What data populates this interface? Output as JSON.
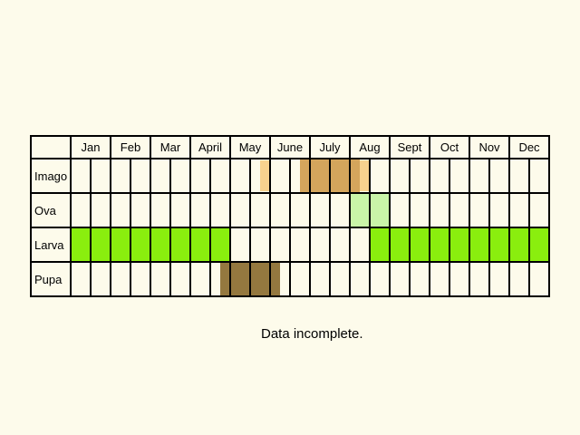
{
  "months": [
    "Jan",
    "Feb",
    "Mar",
    "April",
    "May",
    "June",
    "July",
    "Aug",
    "Sept",
    "Oct",
    "Nov",
    "Dec"
  ],
  "stages": [
    {
      "label": "Imago",
      "color": "#d4a55c",
      "light_color": "#f7d28e",
      "periods": [
        [
          11.5,
          14.5
        ]
      ]
    },
    {
      "label": "Ova",
      "color": "#c9f5a8",
      "light_color": "#c9f5a8",
      "periods": [
        [
          14,
          16
        ]
      ]
    },
    {
      "label": "Larva",
      "color": "#8aee0e",
      "light_color": "#8aee0e",
      "periods": [
        [
          0,
          8
        ],
        [
          15,
          24
        ]
      ]
    },
    {
      "label": "Pupa",
      "color": "#94783f",
      "light_color": "#94783f",
      "periods": [
        [
          7.5,
          10.5
        ]
      ]
    }
  ],
  "note": "Data incomplete."
}
